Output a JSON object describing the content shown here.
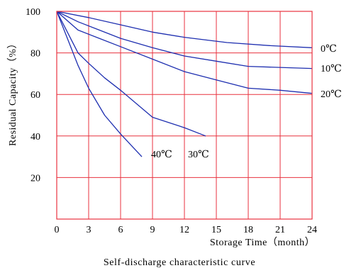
{
  "chart_data": {
    "type": "line",
    "title": "Self-discharge characteristic curve",
    "xlabel": "Storage Time（month）",
    "ylabel": "Residual Capacity（%）",
    "xlim": [
      0,
      24
    ],
    "ylim": [
      0,
      100
    ],
    "x_ticks": [
      0,
      3,
      6,
      9,
      12,
      15,
      18,
      21,
      24
    ],
    "y_ticks": [
      20,
      40,
      60,
      80,
      100
    ],
    "grid": true,
    "grid_color": "#e8323f",
    "line_color": "#1e2fb0",
    "series": [
      {
        "name": "0℃",
        "x": [
          0,
          3,
          6,
          9,
          12,
          16,
          20,
          24
        ],
        "y": [
          100,
          97,
          93.5,
          90,
          87.5,
          85,
          83.5,
          82.5
        ]
      },
      {
        "name": "10℃",
        "x": [
          0,
          2,
          4,
          6,
          9,
          12,
          15,
          18,
          21,
          24
        ],
        "y": [
          100,
          95,
          91,
          87,
          82.5,
          78.5,
          76,
          73.5,
          73,
          72.5
        ]
      },
      {
        "name": "20℃",
        "x": [
          0,
          2,
          4,
          6,
          9,
          12,
          15,
          18,
          21,
          24
        ],
        "y": [
          100,
          91,
          87,
          83,
          77,
          71,
          67,
          63,
          62,
          60.5
        ]
      },
      {
        "name": "30℃",
        "x": [
          0,
          1,
          2,
          3,
          4.5,
          6,
          9,
          12,
          14
        ],
        "y": [
          100,
          90,
          80,
          75,
          68,
          62,
          49,
          44,
          40
        ]
      },
      {
        "name": "40℃",
        "x": [
          0,
          1,
          2,
          3,
          4.5,
          6,
          8
        ],
        "y": [
          100,
          87,
          74,
          63,
          50,
          41,
          30
        ]
      }
    ]
  }
}
